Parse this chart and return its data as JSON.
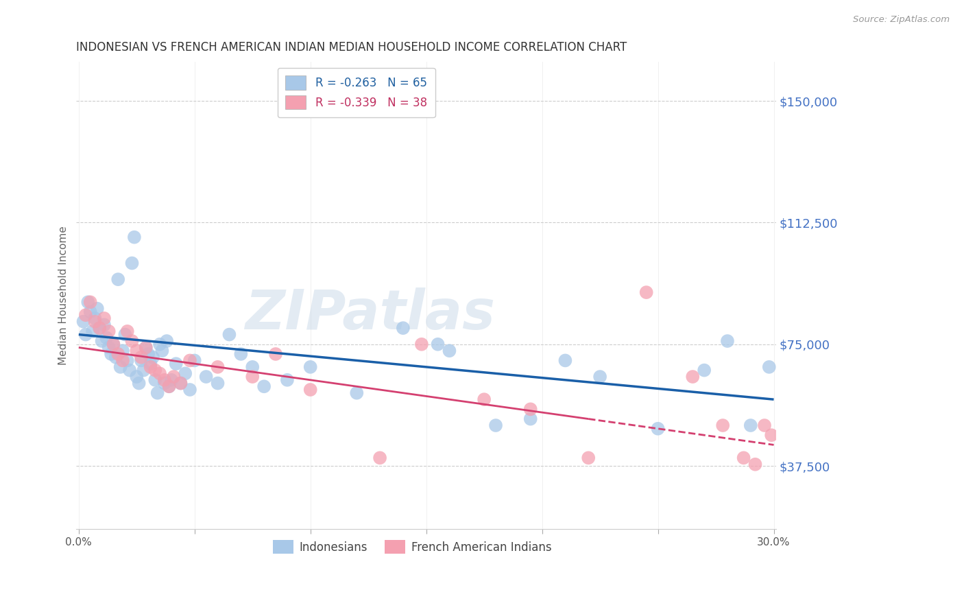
{
  "title": "INDONESIAN VS FRENCH AMERICAN INDIAN MEDIAN HOUSEHOLD INCOME CORRELATION CHART",
  "source": "Source: ZipAtlas.com",
  "ylabel": "Median Household Income",
  "yticks": [
    37500,
    75000,
    112500,
    150000
  ],
  "ytick_labels": [
    "$37,500",
    "$75,000",
    "$112,500",
    "$150,000"
  ],
  "ymin": 18000,
  "ymax": 162000,
  "xmin": -0.001,
  "xmax": 0.301,
  "blue_color": "#a8c8e8",
  "blue_line": "#1a5fa8",
  "pink_color": "#f4a0b0",
  "pink_line": "#d44070",
  "r_blue": -0.263,
  "n_blue": 65,
  "r_pink": -0.339,
  "n_pink": 38,
  "blue_label": "Indonesians",
  "pink_label": "French American Indians",
  "watermark": "ZIPatlas",
  "indonesian_x": [
    0.002,
    0.003,
    0.004,
    0.005,
    0.006,
    0.007,
    0.008,
    0.009,
    0.01,
    0.011,
    0.012,
    0.013,
    0.014,
    0.015,
    0.016,
    0.017,
    0.018,
    0.019,
    0.02,
    0.021,
    0.022,
    0.023,
    0.024,
    0.025,
    0.026,
    0.027,
    0.028,
    0.029,
    0.03,
    0.031,
    0.032,
    0.033,
    0.034,
    0.035,
    0.036,
    0.037,
    0.038,
    0.039,
    0.04,
    0.042,
    0.044,
    0.046,
    0.048,
    0.05,
    0.055,
    0.06,
    0.065,
    0.07,
    0.075,
    0.08,
    0.09,
    0.1,
    0.12,
    0.14,
    0.155,
    0.16,
    0.18,
    0.195,
    0.21,
    0.225,
    0.25,
    0.27,
    0.28,
    0.29,
    0.298
  ],
  "indonesian_y": [
    82000,
    78000,
    88000,
    85000,
    79000,
    83000,
    86000,
    80000,
    76000,
    81000,
    77000,
    74000,
    72000,
    75000,
    71000,
    95000,
    68000,
    73000,
    78000,
    70000,
    67000,
    100000,
    108000,
    65000,
    63000,
    70000,
    67000,
    74000,
    72000,
    69000,
    71000,
    64000,
    60000,
    75000,
    73000,
    63000,
    76000,
    62000,
    64000,
    69000,
    63000,
    66000,
    61000,
    70000,
    65000,
    63000,
    78000,
    72000,
    68000,
    62000,
    64000,
    68000,
    60000,
    80000,
    75000,
    73000,
    50000,
    52000,
    70000,
    65000,
    49000,
    67000,
    76000,
    50000,
    68000
  ],
  "french_x": [
    0.003,
    0.005,
    0.007,
    0.009,
    0.011,
    0.013,
    0.015,
    0.017,
    0.019,
    0.021,
    0.023,
    0.025,
    0.027,
    0.029,
    0.031,
    0.033,
    0.035,
    0.037,
    0.039,
    0.041,
    0.044,
    0.048,
    0.06,
    0.075,
    0.085,
    0.1,
    0.13,
    0.148,
    0.175,
    0.195,
    0.22,
    0.245,
    0.265,
    0.278,
    0.287,
    0.292,
    0.296,
    0.299
  ],
  "french_y": [
    84000,
    88000,
    82000,
    80000,
    83000,
    79000,
    75000,
    72000,
    70000,
    79000,
    76000,
    73000,
    71000,
    74000,
    68000,
    67000,
    66000,
    64000,
    62000,
    65000,
    63000,
    70000,
    68000,
    65000,
    72000,
    61000,
    40000,
    75000,
    58000,
    55000,
    40000,
    91000,
    65000,
    50000,
    40000,
    38000,
    50000,
    47000
  ],
  "blue_trend_x0": 0.0,
  "blue_trend_y0": 78000,
  "blue_trend_x1": 0.3,
  "blue_trend_y1": 58000,
  "pink_trend_x0": 0.0,
  "pink_trend_y0": 74000,
  "pink_trend_x1": 0.3,
  "pink_trend_y1": 44000
}
